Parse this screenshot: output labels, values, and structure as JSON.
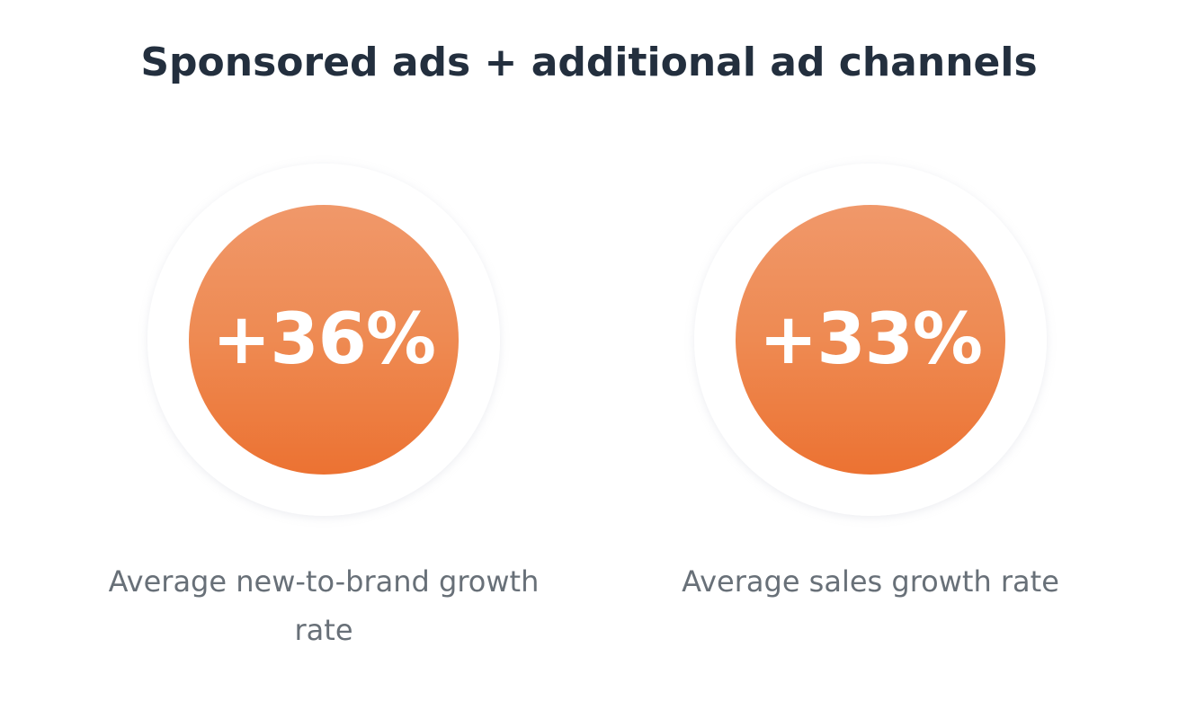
{
  "title": "Sponsored ads + additional ad channels",
  "stats": [
    {
      "value": "+36%",
      "caption": "Average new-to-brand growth rate"
    },
    {
      "value": "+33%",
      "caption": "Average sales growth rate"
    }
  ],
  "colors": {
    "title": "#232f3e",
    "accent_top": "#f0986a",
    "accent_bottom": "#ec7232",
    "caption": "#687078"
  }
}
